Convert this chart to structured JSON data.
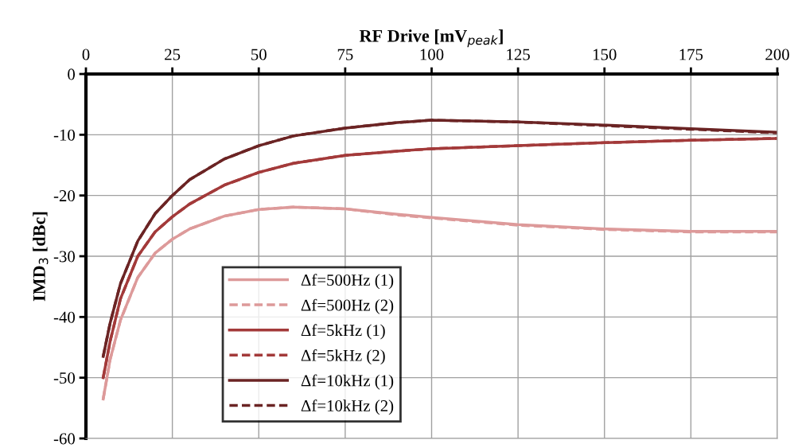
{
  "chart_data": {
    "type": "line",
    "xlabel": "RF Drive [mV$_{peak}$]",
    "ylabel": "IMD$_{3}$ [dBc]",
    "x": [
      5,
      7,
      10,
      15,
      20,
      25,
      30,
      40,
      50,
      60,
      75,
      90,
      100,
      125,
      150,
      175,
      200
    ],
    "xlim": [
      0,
      200
    ],
    "xticks": [
      0,
      25,
      50,
      75,
      100,
      125,
      150,
      175,
      200
    ],
    "ylim": [
      -60,
      0
    ],
    "yticks": [
      -60,
      -50,
      -40,
      -30,
      -20,
      -10,
      0
    ],
    "grid": true,
    "legend": "bottom left",
    "marker": "none",
    "series": [
      {
        "name": "Δf=500Hz (1)",
        "color": "#dd9a9a",
        "line_style": "solid",
        "values": [
          -53.5,
          -47,
          -40.5,
          -33.5,
          -29.5,
          -27.2,
          -25.5,
          -23.4,
          -22.3,
          -21.9,
          -22.2,
          -23.1,
          -23.6,
          -24.8,
          -25.5,
          -25.9,
          -25.9
        ]
      },
      {
        "name": "Δf=500Hz (2)",
        "color": "#dd9a9a",
        "line_style": "dashed",
        "values": [
          -53.5,
          -47,
          -40.5,
          -33.5,
          -29.5,
          -27.2,
          -25.5,
          -23.4,
          -22.3,
          -21.9,
          -22.2,
          -23.2,
          -23.7,
          -24.9,
          -25.6,
          -26.0,
          -26.0
        ]
      },
      {
        "name": "Δf=5kHz (1)",
        "color": "#a33a3a",
        "line_style": "solid",
        "values": [
          -50,
          -44,
          -37,
          -30,
          -26,
          -23.5,
          -21.4,
          -18.3,
          -16.2,
          -14.7,
          -13.4,
          -12.7,
          -12.3,
          -11.8,
          -11.3,
          -10.9,
          -10.6
        ]
      },
      {
        "name": "Δf=5kHz (2)",
        "color": "#a33a3a",
        "line_style": "dashed",
        "values": [
          -50,
          -44,
          -37,
          -30,
          -26,
          -23.5,
          -21.4,
          -18.3,
          -16.2,
          -14.7,
          -13.4,
          -12.7,
          -12.3,
          -11.8,
          -11.3,
          -10.9,
          -10.6
        ]
      },
      {
        "name": "Δf=10kHz (1)",
        "color": "#6b2424",
        "line_style": "solid",
        "values": [
          -46.5,
          -41,
          -34.5,
          -27.5,
          -23,
          -20,
          -17.4,
          -14,
          -11.8,
          -10.2,
          -8.9,
          -8.0,
          -7.6,
          -7.9,
          -8.4,
          -9.0,
          -9.6
        ]
      },
      {
        "name": "Δf=10kHz (2)",
        "color": "#6b2424",
        "line_style": "dashed",
        "values": [
          -46.5,
          -41,
          -34.5,
          -27.5,
          -23,
          -20,
          -17.4,
          -14,
          -11.8,
          -10.2,
          -8.9,
          -8.0,
          -7.6,
          -7.9,
          -8.5,
          -9.1,
          -9.7
        ]
      }
    ]
  }
}
